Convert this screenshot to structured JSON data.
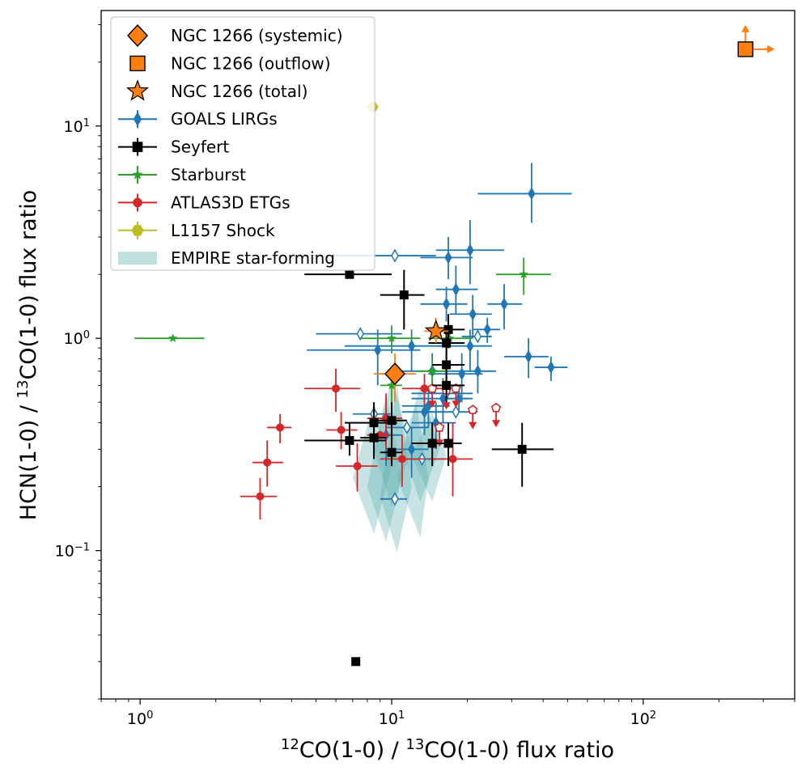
{
  "chart_data": {
    "type": "scatter",
    "xlabel": {
      "pre": "12",
      "main": "CO(1-0) / ",
      "mid": "13",
      "post": "CO(1-0)  flux ratio"
    },
    "ylabel": {
      "pre": "HCN(1-0) / ",
      "mid": "13",
      "post": "CO(1-0) flux ratio"
    },
    "xscale": "log",
    "yscale": "log",
    "xlim": [
      0.7,
      400
    ],
    "ylim": [
      0.02,
      35
    ],
    "x_ticks": [
      {
        "base": "10",
        "exp": "0",
        "value": 1
      },
      {
        "base": "10",
        "exp": "1",
        "value": 10
      },
      {
        "base": "10",
        "exp": "2",
        "value": 100
      }
    ],
    "y_ticks": [
      {
        "base": "10",
        "exp": "−1",
        "value": 0.1
      },
      {
        "base": "10",
        "exp": "0",
        "value": 1
      },
      {
        "base": "10",
        "exp": "1",
        "value": 10
      }
    ],
    "grid": false,
    "legend_position": "upper-left",
    "legend": [
      {
        "label": "NGC 1266 (systemic)",
        "marker": "diamond",
        "color": "#ff7f0e"
      },
      {
        "label": "NGC 1266 (outflow)",
        "marker": "square",
        "color": "#ff7f0e"
      },
      {
        "label": "NGC 1266 (total)",
        "marker": "star",
        "color": "#ff7f0e"
      },
      {
        "label": "GOALS LIRGs",
        "marker": "thin-diamond-errorbar",
        "color": "#1f77b4"
      },
      {
        "label": "Seyfert",
        "marker": "square-errorbar",
        "color": "#000000"
      },
      {
        "label": "Starburst",
        "marker": "star-errorbar",
        "color": "#2ca02c"
      },
      {
        "label": "ATLAS3D ETGs",
        "marker": "circle-errorbar",
        "color": "#d62728"
      },
      {
        "label": "L1157 Shock",
        "marker": "hexagon-errorbar",
        "color": "#bcbd22"
      },
      {
        "label": "EMPIRE star-forming",
        "marker": "patch",
        "color": "#5fb0b0"
      }
    ],
    "series": [
      {
        "name": "NGC 1266 (systemic)",
        "color": "#ff7f0e",
        "marker": "diamond",
        "points": [
          {
            "x": 10.3,
            "y": 0.68,
            "xerr": [
              8.5,
              12.5
            ],
            "yerr": [
              0.5,
              0.85
            ]
          }
        ]
      },
      {
        "name": "NGC 1266 (outflow)",
        "color": "#ff7f0e",
        "marker": "square",
        "points": [
          {
            "x": 255,
            "y": 23,
            "lower_limit_x": true,
            "lower_limit_y": true
          }
        ]
      },
      {
        "name": "NGC 1266 (total)",
        "color": "#ff7f0e",
        "marker": "star",
        "points": [
          {
            "x": 15,
            "y": 1.08,
            "xerr": [
              13.5,
              16.8
            ],
            "yerr": [
              0.95,
              1.25
            ]
          }
        ]
      },
      {
        "name": "GOALS LIRGs",
        "color": "#1f77b4",
        "marker": "thin-diamond",
        "points": [
          {
            "x": 36,
            "y": 4.8,
            "xerr": [
              22,
              52
            ],
            "yerr": [
              3.5,
              6.7
            ]
          },
          {
            "x": 20.5,
            "y": 2.6,
            "xerr": [
              15,
              28
            ],
            "yerr": [
              1.8,
              3.6
            ]
          },
          {
            "x": 16.8,
            "y": 2.4,
            "xerr": [
              13,
              21
            ],
            "yerr": [
              1.9,
              3.0
            ]
          },
          {
            "x": 18,
            "y": 1.7,
            "xerr": [
              15,
              22
            ],
            "yerr": [
              1.3,
              2.2
            ]
          },
          {
            "x": 28,
            "y": 1.45,
            "xerr": [
              24,
              33
            ],
            "yerr": [
              1.1,
              1.8
            ]
          },
          {
            "x": 21,
            "y": 1.3,
            "xerr": [
              17,
              25
            ],
            "yerr": [
              1.0,
              1.6
            ]
          },
          {
            "x": 16.5,
            "y": 1.45,
            "xerr": [
              13,
              20
            ],
            "yerr": [
              1.2,
              1.75
            ]
          },
          {
            "x": 24,
            "y": 1.1,
            "xerr": [
              21,
              27
            ],
            "yerr": [
              0.95,
              1.25
            ]
          },
          {
            "x": 35,
            "y": 0.82,
            "xerr": [
              28,
              42
            ],
            "yerr": [
              0.65,
              1.0
            ]
          },
          {
            "x": 43,
            "y": 0.73,
            "xerr": [
              37,
              50
            ],
            "yerr": [
              0.63,
              0.82
            ]
          },
          {
            "x": 22,
            "y": 0.7,
            "xerr": [
              18,
              26
            ],
            "yerr": [
              0.55,
              0.88
            ]
          },
          {
            "x": 8.8,
            "y": 0.88,
            "xerr": [
              4.6,
              13
            ],
            "yerr": [
              0.6,
              1.1
            ]
          },
          {
            "x": 12,
            "y": 0.92,
            "xerr": [
              6.5,
              17
            ],
            "yerr": [
              0.7,
              1.1
            ]
          },
          {
            "x": 20.5,
            "y": 0.92,
            "xerr": [
              15,
              25
            ],
            "yerr": [
              0.7,
              1.1
            ]
          },
          {
            "x": 19,
            "y": 0.68,
            "xerr": [
              14,
              23
            ],
            "yerr": [
              0.5,
              0.85
            ]
          },
          {
            "x": 14.5,
            "y": 0.7,
            "xerr": [
              11,
              18
            ],
            "yerr": [
              0.55,
              0.85
            ]
          },
          {
            "x": 16,
            "y": 0.52,
            "xerr": [
              12,
              20
            ],
            "yerr": [
              0.4,
              0.65
            ]
          },
          {
            "x": 13.5,
            "y": 0.45,
            "xerr": [
              11,
              16
            ],
            "yerr": [
              0.35,
              0.55
            ]
          },
          {
            "x": 15,
            "y": 0.4,
            "xerr": [
              12,
              18
            ],
            "yerr": [
              0.3,
              0.5
            ]
          },
          {
            "x": 12,
            "y": 0.3,
            "xerr": [
              10,
              14
            ],
            "yerr": [
              0.22,
              0.38
            ]
          },
          {
            "x": 9.5,
            "y": 0.35,
            "xerr": [
              8,
              11
            ],
            "yerr": [
              0.25,
              0.45
            ]
          },
          {
            "x": 14,
            "y": 0.48,
            "xerr": [
              11,
              17
            ],
            "yerr": [
              0.38,
              0.58
            ]
          },
          {
            "x": 18.5,
            "y": 0.52,
            "xerr": [
              16,
              21
            ],
            "yerr": [
              0.45,
              0.6
            ]
          }
        ]
      },
      {
        "name": "GOALS LIRGs (limits)",
        "color": "#1f77b4",
        "marker": "thin-diamond-open",
        "points": [
          {
            "x": 10.3,
            "y": 2.45,
            "xerr": [
              4.5,
              15
            ]
          },
          {
            "x": 7.5,
            "y": 1.05,
            "xerr": [
              5,
              11
            ]
          },
          {
            "x": 16.5,
            "y": 0.55,
            "xerr": [
              12,
              21
            ]
          },
          {
            "x": 18,
            "y": 0.45,
            "xerr": [
              14,
              22
            ]
          },
          {
            "x": 8.5,
            "y": 0.44,
            "xerr": [
              7,
              10
            ]
          },
          {
            "x": 11.5,
            "y": 0.38,
            "xerr": [
              9.5,
              14
            ]
          },
          {
            "x": 13.2,
            "y": 0.27,
            "xerr": [
              11,
              15.5
            ]
          },
          {
            "x": 10.3,
            "y": 0.175,
            "xerr": [
              9,
              11.5
            ]
          },
          {
            "x": 22,
            "y": 1.02,
            "xerr": [
              19,
              25
            ]
          }
        ]
      },
      {
        "name": "Seyfert",
        "color": "#000000",
        "marker": "square",
        "points": [
          {
            "x": 6.8,
            "y": 2.0,
            "xerr": [
              4.5,
              10
            ]
          },
          {
            "x": 11.2,
            "y": 1.6,
            "xerr": [
              9,
              13.5
            ],
            "yerr": [
              1.1,
              2.1
            ]
          },
          {
            "x": 16.8,
            "y": 1.1,
            "xerr": [
              14.5,
              19.5
            ],
            "yerr": [
              0.9,
              1.3
            ]
          },
          {
            "x": 16.5,
            "y": 0.95,
            "xerr": [
              14,
              19.5
            ],
            "yerr": [
              0.8,
              1.1
            ]
          },
          {
            "x": 16.5,
            "y": 0.75,
            "xerr": [
              14.5,
              19.5
            ],
            "yerr": [
              0.6,
              0.9
            ]
          },
          {
            "x": 16.5,
            "y": 0.6,
            "xerr": [
              14.5,
              19.5
            ],
            "yerr": [
              0.5,
              0.7
            ]
          },
          {
            "x": 8.5,
            "y": 0.4,
            "xerr": [
              6.5,
              10.5
            ],
            "yerr": [
              0.3,
              0.5
            ]
          },
          {
            "x": 10,
            "y": 0.41,
            "xerr": [
              8.5,
              11.5
            ],
            "yerr": [
              0.32,
              0.5
            ]
          },
          {
            "x": 6.8,
            "y": 0.33,
            "xerr": [
              4.5,
              9.5
            ],
            "yerr": [
              0.28,
              0.4
            ]
          },
          {
            "x": 8.5,
            "y": 0.34,
            "xerr": [
              7.5,
              9.5
            ],
            "yerr": [
              0.27,
              0.42
            ]
          },
          {
            "x": 10,
            "y": 0.29,
            "xerr": [
              9,
              11
            ],
            "yerr": [
              0.25,
              0.33
            ]
          },
          {
            "x": 14.5,
            "y": 0.32,
            "xerr": [
              12,
              17
            ],
            "yerr": [
              0.25,
              0.4
            ]
          },
          {
            "x": 16.8,
            "y": 0.32,
            "xerr": [
              15,
              19
            ],
            "yerr": [
              0.25,
              0.4
            ]
          },
          {
            "x": 33,
            "y": 0.3,
            "xerr": [
              25,
              44
            ],
            "yerr": [
              0.2,
              0.4
            ]
          },
          {
            "x": 7.2,
            "y": 0.03
          }
        ]
      },
      {
        "name": "Starburst",
        "color": "#2ca02c",
        "marker": "star",
        "points": [
          {
            "x": 1.35,
            "y": 1.0,
            "xerr": [
              0.95,
              1.8
            ]
          },
          {
            "x": 33.5,
            "y": 2.0,
            "xerr": [
              26,
              43
            ],
            "yerr": [
              1.6,
              2.4
            ]
          },
          {
            "x": 10,
            "y": 1.0,
            "xerr": [
              7.5,
              13
            ],
            "yerr": [
              0.85,
              1.15
            ]
          },
          {
            "x": 17,
            "y": 1.0,
            "xerr": [
              14,
              21
            ],
            "yerr": [
              0.9,
              1.1
            ]
          },
          {
            "x": 10,
            "y": 0.6,
            "xerr": [
              9,
              11
            ],
            "yerr": [
              0.5,
              0.7
            ]
          },
          {
            "x": 14.5,
            "y": 0.7,
            "xerr": [
              12.5,
              16.5
            ],
            "yerr": [
              0.6,
              0.8
            ]
          }
        ]
      },
      {
        "name": "ATLAS3D ETGs",
        "color": "#d62728",
        "marker": "circle",
        "points": [
          {
            "x": 6.0,
            "y": 0.58,
            "xerr": [
              4.5,
              7.5
            ],
            "yerr": [
              0.45,
              0.72
            ]
          },
          {
            "x": 3.6,
            "y": 0.38,
            "xerr": [
              3.2,
              4.0
            ],
            "yerr": [
              0.32,
              0.44
            ]
          },
          {
            "x": 3.2,
            "y": 0.26,
            "xerr": [
              2.8,
              3.7
            ],
            "yerr": [
              0.2,
              0.33
            ]
          },
          {
            "x": 3.0,
            "y": 0.18,
            "xerr": [
              2.5,
              3.5
            ],
            "yerr": [
              0.14,
              0.22
            ]
          },
          {
            "x": 6.3,
            "y": 0.37,
            "xerr": [
              5.5,
              7.3
            ],
            "yerr": [
              0.3,
              0.45
            ]
          },
          {
            "x": 7.3,
            "y": 0.25,
            "xerr": [
              6,
              8.8
            ],
            "yerr": [
              0.19,
              0.32
            ]
          },
          {
            "x": 9.5,
            "y": 0.42,
            "xerr": [
              8,
              11
            ],
            "yerr": [
              0.3,
              0.55
            ]
          },
          {
            "x": 11,
            "y": 0.27,
            "xerr": [
              9,
              13.5
            ],
            "yerr": [
              0.2,
              0.35
            ]
          },
          {
            "x": 17.5,
            "y": 0.27,
            "xerr": [
              14,
              21
            ],
            "yerr": [
              0.18,
              0.4
            ]
          },
          {
            "x": 13.5,
            "y": 0.58,
            "xerr": [
              11,
              16.5
            ],
            "yerr": [
              0.48,
              0.68
            ]
          },
          {
            "x": 9.0,
            "y": 0.35,
            "xerr": [
              8,
              10
            ]
          }
        ]
      },
      {
        "name": "ATLAS3D ETGs (upper limits)",
        "color": "#d62728",
        "marker": "pentagon-open",
        "points": [
          {
            "x": 14.5,
            "y": 0.58,
            "upper_limit_y": true
          },
          {
            "x": 16.5,
            "y": 0.57,
            "upper_limit_y": true
          },
          {
            "x": 18,
            "y": 0.58,
            "upper_limit_y": true
          },
          {
            "x": 21,
            "y": 0.46,
            "upper_limit_y": true
          },
          {
            "x": 26,
            "y": 0.47,
            "upper_limit_y": true
          },
          {
            "x": 15.5,
            "y": 0.38,
            "upper_limit_y": true
          }
        ]
      },
      {
        "name": "L1157 Shock",
        "color": "#bcbd22",
        "marker": "hexagon",
        "points": [
          {
            "x": 8.4,
            "y": 12.3
          }
        ]
      },
      {
        "name": "EMPIRE star-forming",
        "color": "#5fb0b0",
        "marker": "patch",
        "polygons": [
          [
            [
              7.0,
              0.22
            ],
            [
              8.5,
              0.5
            ],
            [
              10,
              0.25
            ],
            [
              8.5,
              0.12
            ]
          ],
          [
            [
              8.0,
              0.2
            ],
            [
              9.5,
              0.55
            ],
            [
              11,
              0.22
            ],
            [
              9.5,
              0.11
            ]
          ],
          [
            [
              9.0,
              0.18
            ],
            [
              10.5,
              0.6
            ],
            [
              12,
              0.2
            ],
            [
              10.5,
              0.098
            ]
          ],
          [
            [
              10.5,
              0.22
            ],
            [
              12.5,
              0.5
            ],
            [
              14,
              0.22
            ],
            [
              13,
              0.115
            ]
          ],
          [
            [
              11,
              0.3
            ],
            [
              13,
              0.6
            ],
            [
              15.5,
              0.3
            ],
            [
              13,
              0.17
            ]
          ],
          [
            [
              12,
              0.28
            ],
            [
              14.5,
              0.45
            ],
            [
              16.5,
              0.28
            ],
            [
              14.5,
              0.17
            ]
          ],
          [
            [
              8.5,
              0.3
            ],
            [
              10,
              0.65
            ],
            [
              12,
              0.3
            ],
            [
              10,
              0.16
            ]
          ]
        ]
      }
    ]
  }
}
